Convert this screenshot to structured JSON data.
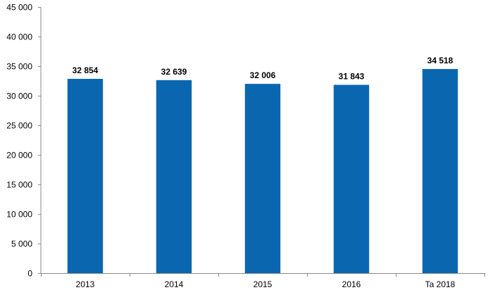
{
  "chart_data": {
    "type": "bar",
    "categories": [
      "2013",
      "2014",
      "2015",
      "2016",
      "Ta 2018"
    ],
    "values": [
      32854,
      32639,
      32006,
      31843,
      34518
    ],
    "data_labels": [
      "32 854",
      "32 639",
      "32 006",
      "31 843",
      "34 518"
    ],
    "y_ticks": [
      0,
      5000,
      10000,
      15000,
      20000,
      25000,
      30000,
      35000,
      40000,
      45000
    ],
    "y_tick_labels": [
      "0",
      "5 000",
      "10 000",
      "15 000",
      "20 000",
      "25 000",
      "30 000",
      "35 000",
      "40 000",
      "45 000"
    ],
    "ylim": [
      0,
      45000
    ],
    "grid": false,
    "legend": "none",
    "bar_color": "#0B66B0",
    "axis_color": "#888888"
  }
}
